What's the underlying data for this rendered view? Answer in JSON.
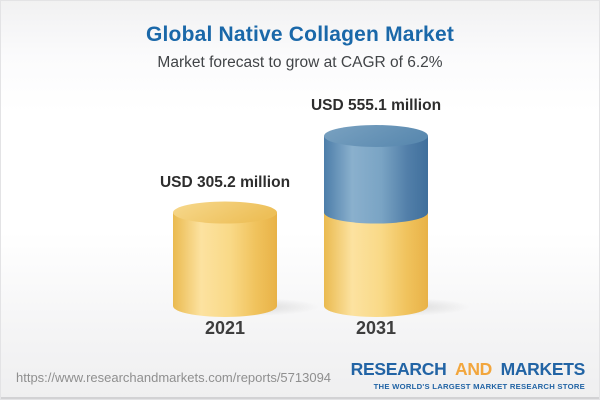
{
  "header": {
    "title": "Global Native Collagen Market",
    "subtitle": "Market forecast to grow at CAGR of 6.2%"
  },
  "chart_data": {
    "type": "bar",
    "title": "Global Native Collagen Market",
    "subtitle": "Market forecast to grow at CAGR of 6.2%",
    "cagr_percent": 6.2,
    "unit": "USD million",
    "categories": [
      "2021",
      "2031"
    ],
    "values": [
      305.2,
      555.1
    ],
    "value_labels": [
      "USD 305.2 million",
      "USD 555.1 million"
    ],
    "stacked_bar_note": "2031 cylinder shows gold base equal to 2021 value plus blue growth segment on top",
    "colors": {
      "base_gold": "#f6d383",
      "growth_blue": "#5f8db3",
      "title_blue": "#1a68a9"
    },
    "ylim": [
      0,
      600
    ],
    "grid": false,
    "legend": false
  },
  "footer": {
    "url": "https://www.researchandmarkets.com/reports/5713094",
    "logo": {
      "word1": "RESEARCH",
      "word2": "AND",
      "word3": "MARKETS",
      "tagline": "THE WORLD'S LARGEST MARKET RESEARCH STORE",
      "blue": "#2264a5",
      "orange": "#f2a63d"
    }
  }
}
